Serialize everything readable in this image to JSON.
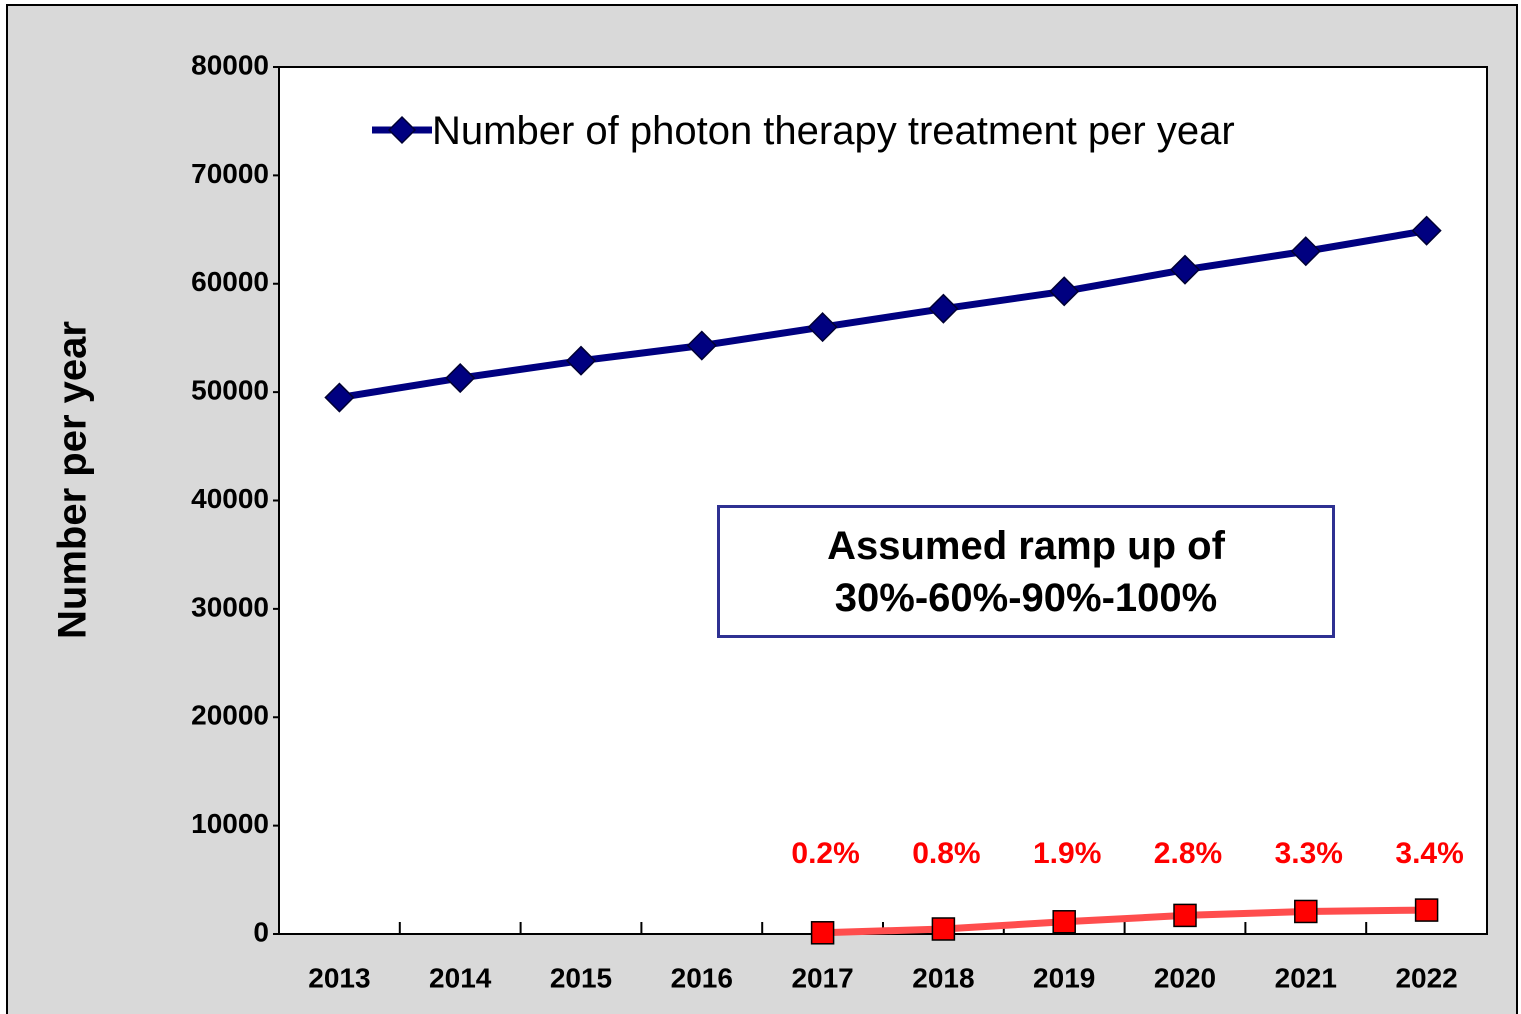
{
  "chart_data": {
    "type": "line",
    "ylabel": "Number per year",
    "categories": [
      "2013",
      "2014",
      "2015",
      "2016",
      "2017",
      "2018",
      "2019",
      "2020",
      "2021",
      "2022"
    ],
    "series": [
      {
        "name": "Number of photon therapy treatment per year",
        "color": "#000080",
        "marker": "diamond",
        "values": [
          49500,
          51300,
          52900,
          54300,
          56000,
          57700,
          59300,
          61300,
          63000,
          64900
        ]
      },
      {
        "color": "#ff4d4d",
        "marker": "square",
        "values": [
          null,
          null,
          null,
          null,
          112,
          462,
          1127,
          1716,
          2079,
          2207
        ],
        "point_labels": [
          null,
          null,
          null,
          null,
          "0.2%",
          "0.8%",
          "1.9%",
          "2.8%",
          "3.3%",
          "3.4%"
        ]
      }
    ],
    "annotation": "Assumed ramp up of 30%-60%-90%-100%",
    "ylim": [
      0,
      80000
    ],
    "yticks": [
      0,
      10000,
      20000,
      30000,
      40000,
      50000,
      60000,
      70000,
      80000
    ],
    "grid": false,
    "legend": "top-left"
  }
}
